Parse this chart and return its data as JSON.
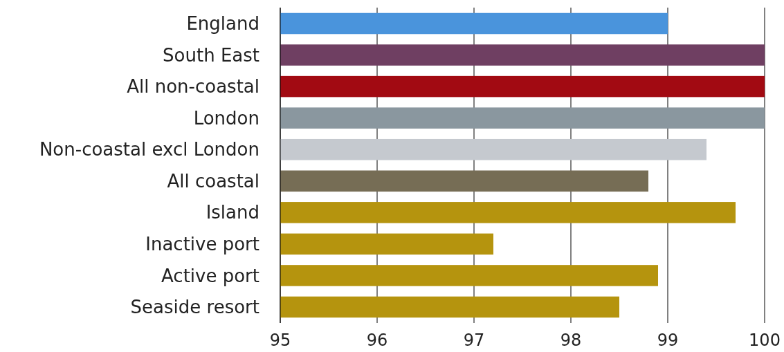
{
  "chart_data": {
    "type": "bar",
    "orientation": "horizontal",
    "categories": [
      "England",
      "South East",
      "All non-coastal",
      "London",
      "Non-coastal excl London",
      "All coastal",
      "Island",
      "Inactive port",
      "Active port",
      "Seaside resort"
    ],
    "values": [
      99.0,
      100,
      100,
      100,
      99.4,
      98.8,
      99.7,
      97.2,
      98.9,
      98.5
    ],
    "colors": [
      "#4a94dc",
      "#6f3f62",
      "#a20a12",
      "#8a979f",
      "#c5c9cf",
      "#766d55",
      "#b5940e",
      "#b5940e",
      "#b5940e",
      "#b5940e"
    ],
    "xlim": [
      95,
      100
    ],
    "xticks": [
      95,
      96,
      97,
      98,
      99,
      100
    ],
    "grid": "x"
  }
}
